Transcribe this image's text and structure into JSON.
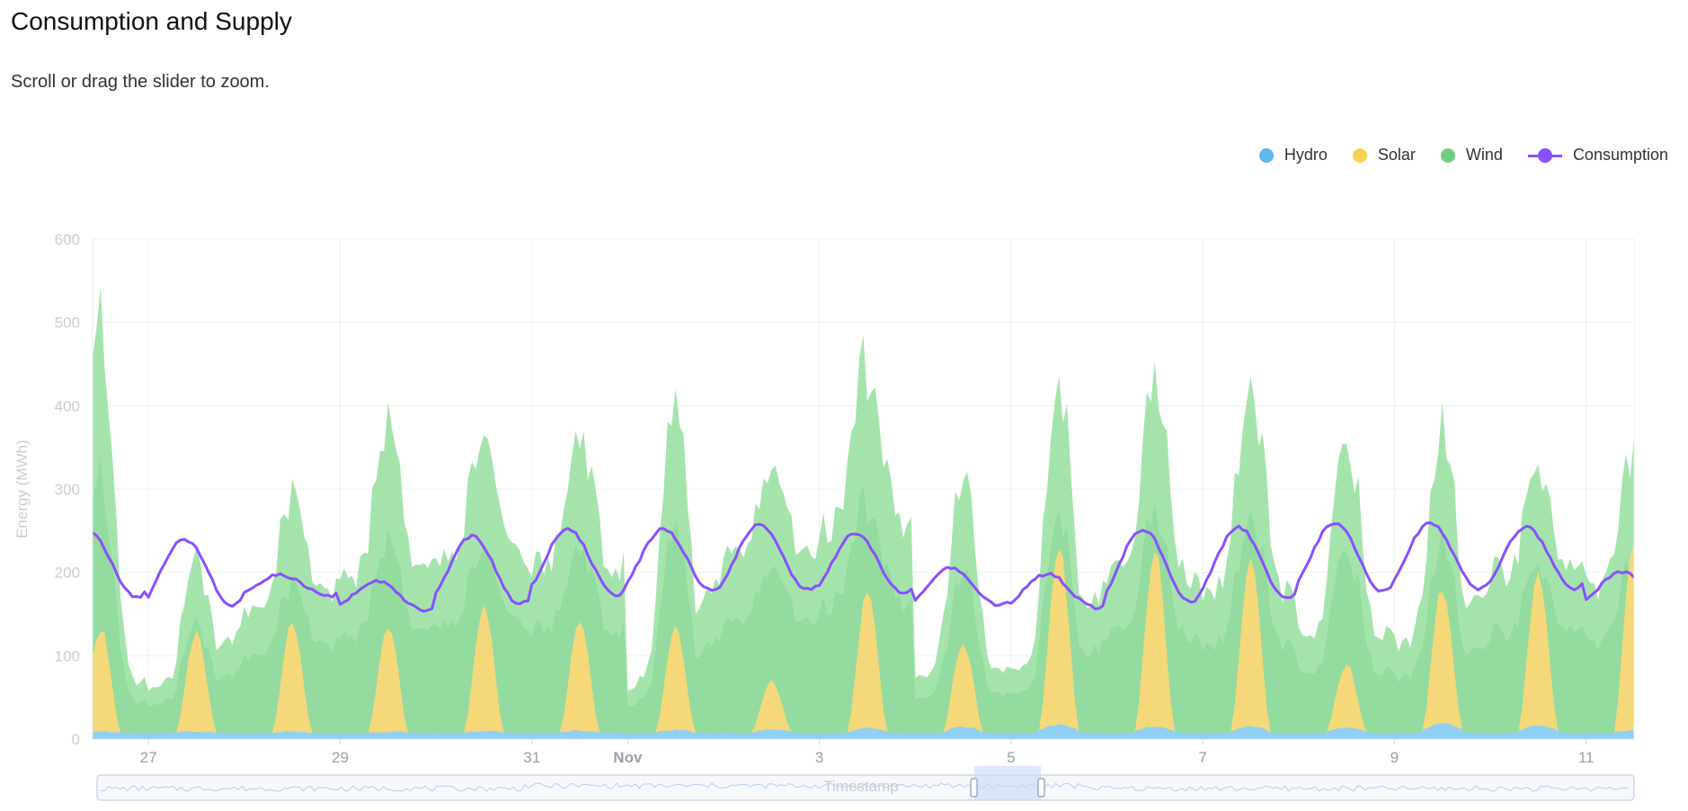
{
  "header": {
    "title": "Consumption and Supply",
    "subtitle": "Scroll or drag the slider to zoom."
  },
  "legend": [
    {
      "label": "Hydro",
      "color": "#5db7f0"
    },
    {
      "label": "Solar",
      "color": "#f5d34f"
    },
    {
      "label": "Wind",
      "color": "#6fcf7f"
    },
    {
      "label": "Consumption",
      "color": "#8a4fff"
    }
  ],
  "chart_data": {
    "type": "area",
    "title": "Consumption and Supply",
    "ylabel": "Energy (MWh)",
    "xlabel": "Timestamp",
    "ylim": [
      0,
      600
    ],
    "y_ticks": [
      0,
      100,
      200,
      300,
      400,
      500,
      600
    ],
    "x_range": [
      "2024-10-26T10:00",
      "2024-11-11T12:00"
    ],
    "x_ticks": [
      {
        "date": "2024-10-27",
        "label": "27"
      },
      {
        "date": "2024-10-29",
        "label": "29"
      },
      {
        "date": "2024-10-31",
        "label": "31"
      },
      {
        "date": "2024-11-01",
        "label": "Nov",
        "bold": true
      },
      {
        "date": "2024-11-03",
        "label": "3"
      },
      {
        "date": "2024-11-05",
        "label": "5"
      },
      {
        "date": "2024-11-07",
        "label": "7"
      },
      {
        "date": "2024-11-09",
        "label": "9"
      },
      {
        "date": "2024-11-11",
        "label": "11"
      }
    ],
    "grid": true,
    "stacked": true,
    "legend_position": "top-right",
    "dates": [
      "2024-10-26",
      "2024-10-27",
      "2024-10-28",
      "2024-10-29",
      "2024-10-30",
      "2024-10-31",
      "2024-11-01",
      "2024-11-02",
      "2024-11-03",
      "2024-11-04",
      "2024-11-05",
      "2024-11-06",
      "2024-11-07",
      "2024-11-08",
      "2024-11-09",
      "2024-11-10",
      "2024-11-11"
    ],
    "series": [
      {
        "name": "Hydro",
        "kind": "area",
        "color": "#8fd0f4",
        "hourly_daily_peak": [
          8,
          8,
          8,
          8,
          8,
          9,
          10,
          10,
          12,
          13,
          16,
          14,
          14,
          13,
          18,
          15,
          10
        ],
        "base": 6
      },
      {
        "name": "Solar",
        "kind": "area",
        "color": "#f5d87a",
        "daily_peak": [
          130,
          125,
          135,
          132,
          155,
          135,
          125,
          60,
          170,
          105,
          220,
          220,
          205,
          80,
          170,
          185,
          240
        ]
      },
      {
        "name": "Wind",
        "kind": "area",
        "color": "#9fe3a8",
        "daily_peak_total": [
          500,
          215,
          285,
          370,
          385,
          360,
          420,
          310,
          450,
          310,
          430,
          425,
          430,
          365,
          375,
          320,
          350
        ],
        "daily_min_total": [
          70,
          60,
          150,
          200,
          220,
          210,
          60,
          230,
          260,
          80,
          90,
          200,
          180,
          130,
          115,
          200,
          180
        ]
      },
      {
        "name": "Consumption",
        "kind": "line",
        "color": "#8a4fff",
        "daily_max": [
          248,
          240,
          197,
          190,
          243,
          252,
          252,
          257,
          246,
          205,
          198,
          252,
          254,
          260,
          260,
          254,
          200
        ],
        "daily_min": [
          170,
          160,
          172,
          155,
          162,
          172,
          178,
          180,
          175,
          160,
          158,
          165,
          170,
          178,
          180,
          180,
          162
        ]
      }
    ]
  },
  "slider": {
    "label": "Timestamp"
  }
}
